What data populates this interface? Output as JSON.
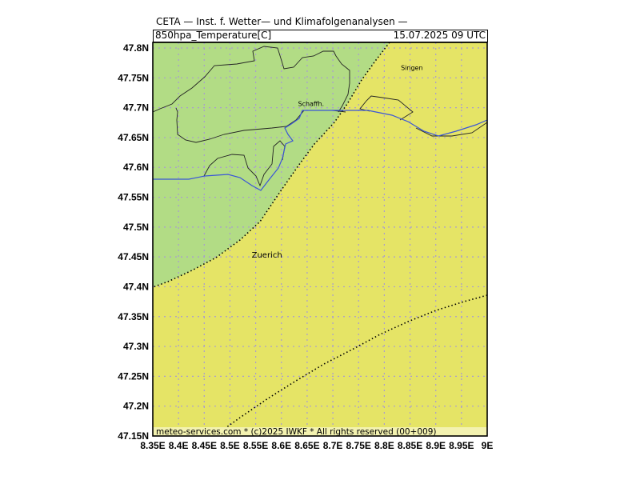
{
  "header": {
    "title": "CETA — Inst. f. Wetter— und Klimafolgenanalysen —",
    "parameter": "850hpa_Temperature[C]",
    "valid_time": "15.07.2025 09 UTC"
  },
  "footer": {
    "credit": "meteo-services.com * (c)2025 IWKF * All rights reserved (00+009)"
  },
  "map": {
    "lon_range": [
      8.35,
      9.0
    ],
    "lat_range": [
      47.15,
      47.8
    ],
    "lon_labels": [
      "8.35E",
      "8.4E",
      "8.45E",
      "8.5E",
      "8.55E",
      "8.6E",
      "8.65E",
      "8.7E",
      "8.75E",
      "8.8E",
      "8.85E",
      "8.9E",
      "8.95E",
      "9E"
    ],
    "lat_labels": [
      "47.8N",
      "47.75N",
      "47.7N",
      "47.65N",
      "47.6N",
      "47.55N",
      "47.5N",
      "47.45N",
      "47.4N",
      "47.35N",
      "47.3N",
      "47.25N",
      "47.2N",
      "47.15N"
    ],
    "colors": {
      "warm_fill": "#e5e466",
      "cool_fill": "#b2dc85",
      "river": "#3a55d8",
      "border": "#000000",
      "grid": "#a89bd0",
      "footer_bg": "#f3f2b0"
    },
    "cities": [
      {
        "name": "Singen",
        "lon": 8.84,
        "lat": 47.76
      },
      {
        "name": "Schaffh.",
        "lon": 8.64,
        "lat": 47.7
      },
      {
        "name": "Zuerich",
        "lon": 8.55,
        "lat": 47.45
      }
    ]
  }
}
